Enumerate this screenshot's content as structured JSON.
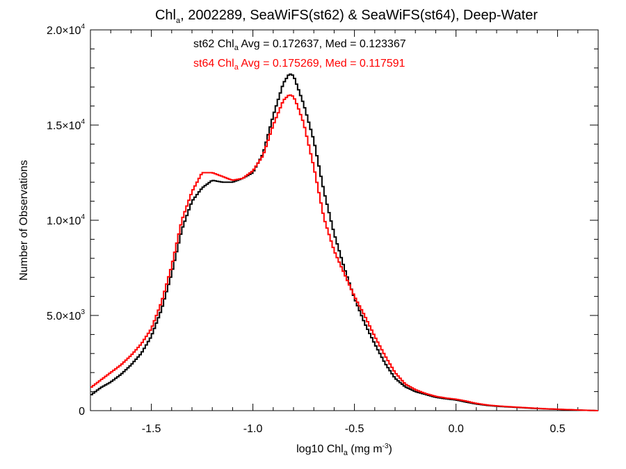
{
  "chart_data": {
    "type": "line",
    "title": {
      "pre": "Chl",
      "sub": "a",
      "post": ", 2002289, SeaWiFS(st62) & SeaWiFS(st64), Deep-Water"
    },
    "xlabel": {
      "pre": "log10 Chl",
      "sub": "a",
      "mid": " (mg m",
      "sup": "-3",
      "post": ")"
    },
    "ylabel": "Number of Observations",
    "xlim": [
      -1.8,
      0.7
    ],
    "ylim": [
      0,
      20000
    ],
    "x_ticks": [
      {
        "value": -1.5,
        "label": "-1.5"
      },
      {
        "value": -1.0,
        "label": "-1.0"
      },
      {
        "value": -0.5,
        "label": "-0.5"
      },
      {
        "value": 0.0,
        "label": "0.0"
      },
      {
        "value": 0.5,
        "label": "0.5"
      }
    ],
    "y_ticks": [
      {
        "value": 0,
        "mant": "0",
        "exp": ""
      },
      {
        "value": 5000,
        "mant": "5.0×10",
        "exp": "3"
      },
      {
        "value": 10000,
        "mant": "1.0×10",
        "exp": "4"
      },
      {
        "value": 15000,
        "mant": "1.5×10",
        "exp": "4"
      },
      {
        "value": 20000,
        "mant": "2.0×10",
        "exp": "4"
      }
    ],
    "annotations": [
      {
        "pre": "st62 Chl",
        "sub": "a",
        "post": " Avg = 0.172637, Med = 0.123367",
        "color": "#000000"
      },
      {
        "pre": "st64 Chl",
        "sub": "a",
        "post": " Avg = 0.175269, Med = 0.117591",
        "color": "#ff0000"
      }
    ],
    "series": [
      {
        "color": "#000000",
        "x": [
          -1.8,
          -1.75,
          -1.7,
          -1.65,
          -1.6,
          -1.55,
          -1.5,
          -1.45,
          -1.4,
          -1.35,
          -1.3,
          -1.25,
          -1.2,
          -1.15,
          -1.1,
          -1.05,
          -1.0,
          -0.95,
          -0.9,
          -0.85,
          -0.82,
          -0.8,
          -0.78,
          -0.75,
          -0.7,
          -0.65,
          -0.6,
          -0.55,
          -0.5,
          -0.45,
          -0.4,
          -0.35,
          -0.3,
          -0.25,
          -0.2,
          -0.15,
          -0.1,
          -0.05,
          0.0,
          0.05,
          0.1,
          0.15,
          0.2,
          0.25,
          0.3,
          0.35,
          0.4,
          0.45,
          0.5,
          0.55,
          0.6,
          0.65,
          0.7
        ],
        "y": [
          800,
          1200,
          1500,
          1900,
          2400,
          3000,
          3900,
          5300,
          7200,
          9500,
          11000,
          11700,
          12100,
          12000,
          12000,
          12200,
          12500,
          13500,
          15500,
          17200,
          17700,
          17600,
          17000,
          16100,
          14200,
          11500,
          9300,
          7500,
          5900,
          4600,
          3500,
          2500,
          1700,
          1250,
          1000,
          850,
          700,
          620,
          560,
          450,
          350,
          280,
          230,
          200,
          170,
          140,
          110,
          90,
          70,
          50,
          30,
          15,
          0
        ]
      },
      {
        "color": "#ff0000",
        "x": [
          -1.8,
          -1.75,
          -1.7,
          -1.65,
          -1.6,
          -1.55,
          -1.5,
          -1.45,
          -1.4,
          -1.35,
          -1.3,
          -1.25,
          -1.2,
          -1.15,
          -1.1,
          -1.05,
          -1.0,
          -0.95,
          -0.9,
          -0.85,
          -0.82,
          -0.8,
          -0.78,
          -0.75,
          -0.7,
          -0.65,
          -0.6,
          -0.55,
          -0.5,
          -0.45,
          -0.4,
          -0.35,
          -0.3,
          -0.25,
          -0.2,
          -0.15,
          -0.1,
          -0.05,
          0.0,
          0.05,
          0.1,
          0.15,
          0.2,
          0.25,
          0.3,
          0.35,
          0.4,
          0.45,
          0.5,
          0.55,
          0.6,
          0.65,
          0.7
        ],
        "y": [
          1200,
          1600,
          2000,
          2400,
          2900,
          3500,
          4300,
          5700,
          7600,
          10000,
          11500,
          12500,
          12500,
          12300,
          12100,
          12200,
          12600,
          13400,
          15000,
          16300,
          16600,
          16500,
          16000,
          15100,
          12800,
          10100,
          8400,
          7200,
          6000,
          5000,
          3900,
          2900,
          2000,
          1400,
          1100,
          900,
          750,
          660,
          600,
          500,
          380,
          300,
          250,
          215,
          180,
          150,
          120,
          95,
          75,
          55,
          35,
          15,
          0
        ]
      }
    ]
  }
}
